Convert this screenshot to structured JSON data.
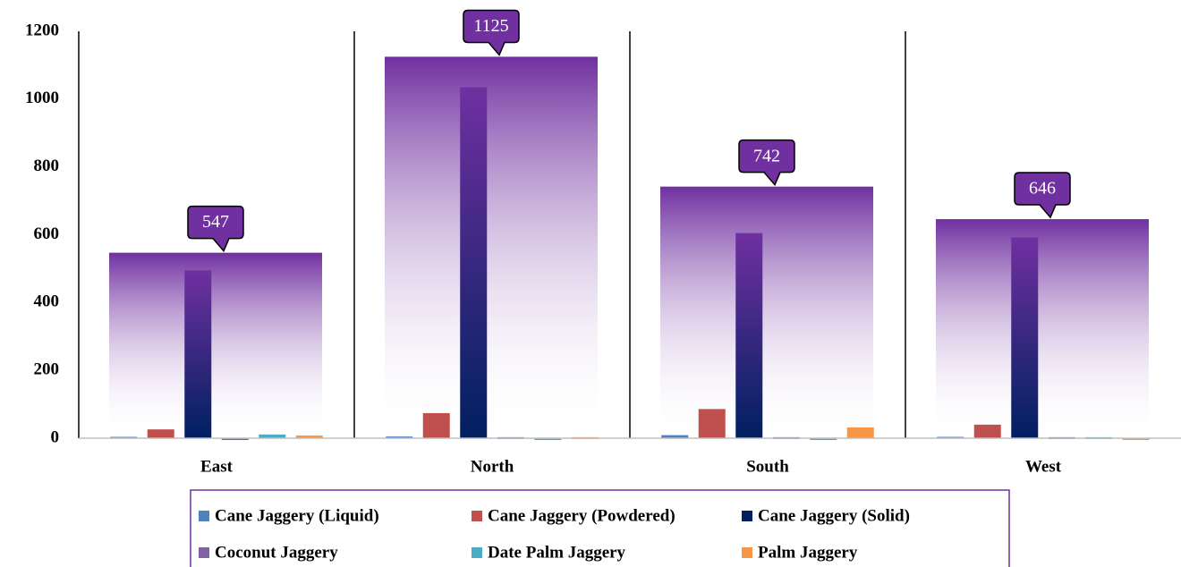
{
  "chart_data": {
    "type": "bar",
    "categories": [
      "East",
      "North",
      "South",
      "West"
    ],
    "totals": [
      547,
      1125,
      742,
      646
    ],
    "totals_color": "#7030a0",
    "series": [
      {
        "name": "Cane Jaggery (Liquid)",
        "color": "#4f81bd",
        "values": [
          4,
          5,
          9,
          4
        ]
      },
      {
        "name": "Cane Jaggery (Powdered)",
        "color": "#c0504d",
        "values": [
          26,
          74,
          86,
          40
        ]
      },
      {
        "name": "Cane Jaggery (Solid)",
        "color": "#002060",
        "values": [
          495,
          1035,
          605,
          592
        ]
      },
      {
        "name": "Coconut Jaggery",
        "color": "#8064a2",
        "values": [
          0,
          3,
          3,
          3
        ]
      },
      {
        "name": "Date Palm Jaggery",
        "color": "#4bacc6",
        "values": [
          11,
          0,
          0,
          3
        ]
      },
      {
        "name": "Palm Jaggery",
        "color": "#f79646",
        "values": [
          8,
          3,
          32,
          0
        ]
      }
    ],
    "ylim": [
      0,
      1200
    ],
    "yticks": [
      0,
      200,
      400,
      600,
      800,
      1000,
      1200
    ]
  }
}
